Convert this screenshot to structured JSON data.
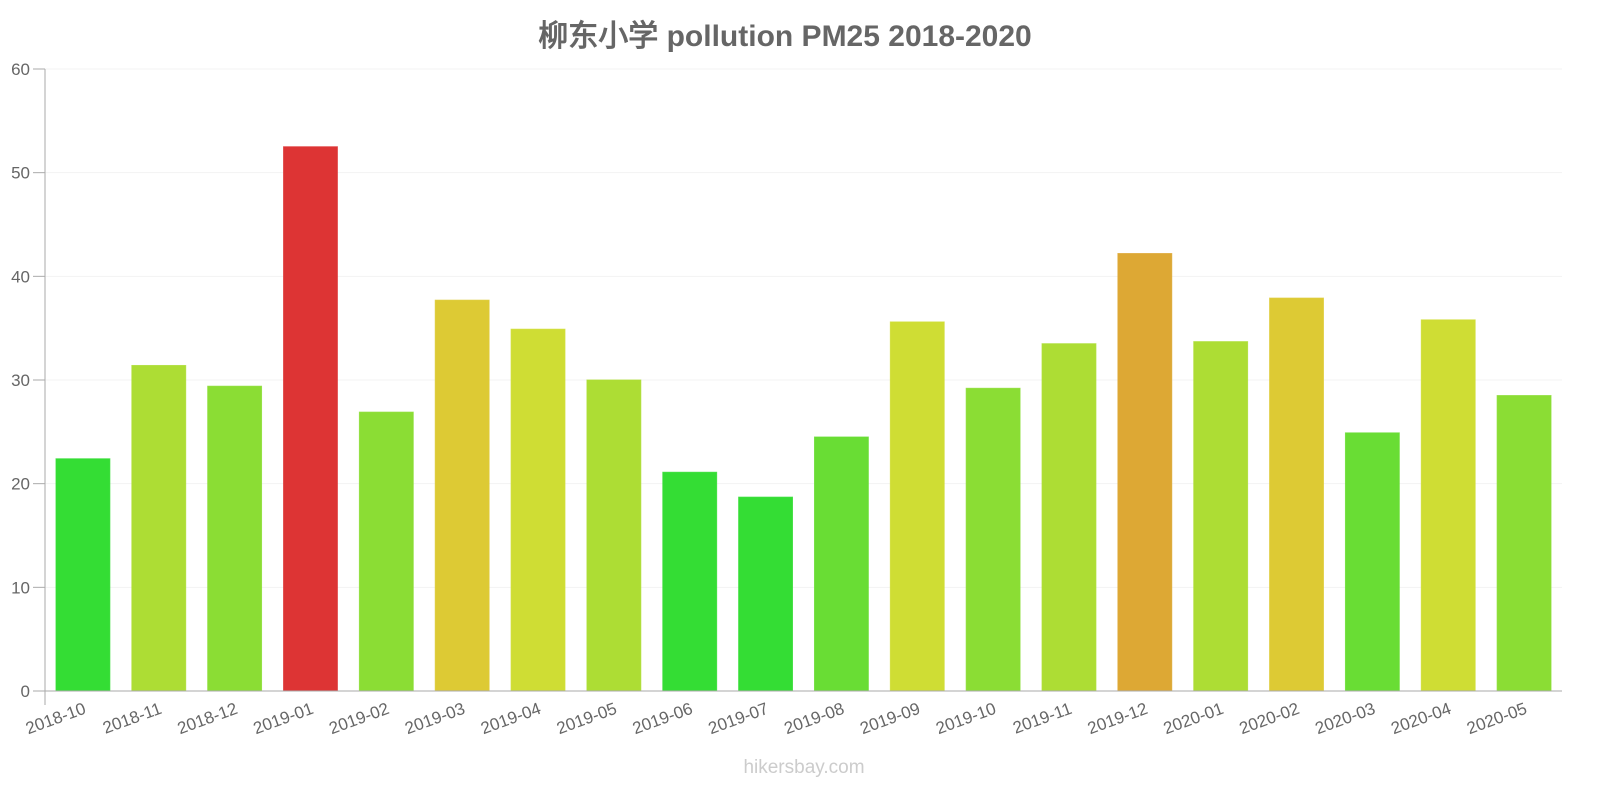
{
  "chart_data": {
    "type": "bar",
    "title": "柳东小学 pollution PM25 2018-2020",
    "xlabel": "",
    "ylabel": "",
    "ylim": [
      0,
      60
    ],
    "yticks": [
      0,
      10,
      20,
      30,
      40,
      50,
      60
    ],
    "grid": true,
    "categories": [
      "2018-10",
      "2018-11",
      "2018-12",
      "2019-01",
      "2019-02",
      "2019-03",
      "2019-04",
      "2019-05",
      "2019-06",
      "2019-07",
      "2019-08",
      "2019-09",
      "2019-10",
      "2019-11",
      "2019-12",
      "2020-01",
      "2020-02",
      "2020-03",
      "2020-04",
      "2020-05"
    ],
    "values": [
      22.4,
      31.4,
      29.4,
      52.5,
      26.9,
      37.7,
      34.9,
      30.0,
      21.1,
      18.7,
      24.5,
      35.6,
      29.2,
      33.5,
      42.2,
      33.7,
      37.9,
      24.9,
      35.8,
      28.5
    ],
    "colors": [
      "#34dd34",
      "#addd34",
      "#8bdd34",
      "#dd3434",
      "#8bdd34",
      "#ddca34",
      "#cfdd34",
      "#addd34",
      "#34dd34",
      "#34dd34",
      "#69dd34",
      "#cfdd34",
      "#8bdd34",
      "#addd34",
      "#dda834",
      "#addd34",
      "#ddca34",
      "#69dd34",
      "#cfdd34",
      "#8bdd34"
    ]
  },
  "watermark": "hikersbay.com"
}
